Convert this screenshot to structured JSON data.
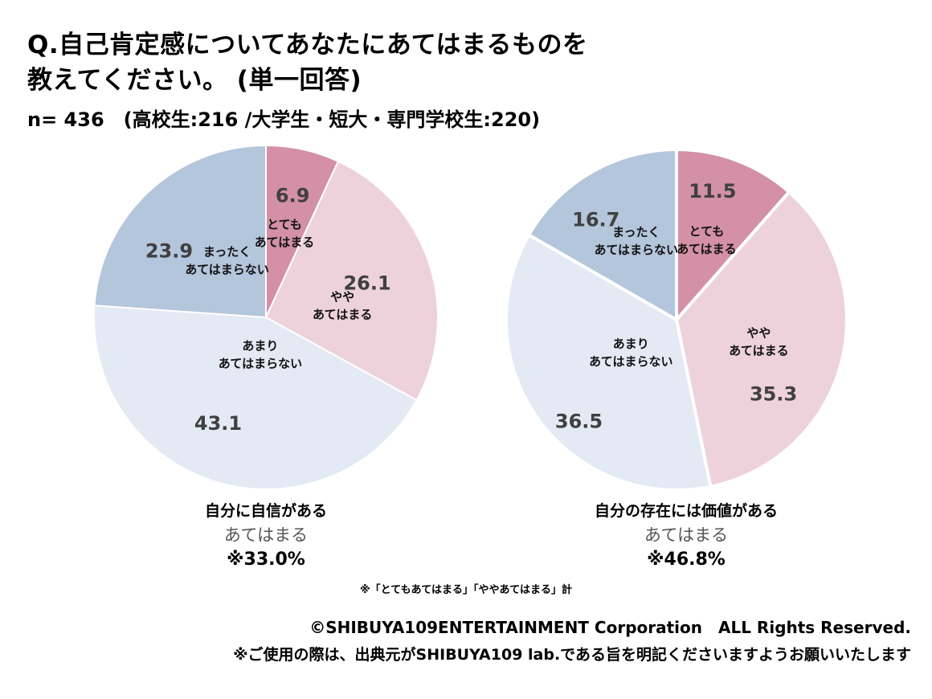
{
  "title_line1": "Q.自己肯定感についてあなたにあてはまるものを",
  "title_line2": "教えてください。 (単一回答)",
  "sample": "n= 436　(高校生:216 /大学生・短大・専門学校生:220)",
  "colors": {
    "totemo": "#d390a6",
    "yaya": "#edd2dc",
    "amari": "#e3eaf4",
    "mattaku": "#b4c6dc",
    "value_text": "#404040"
  },
  "chart_data": [
    {
      "type": "pie",
      "title": "自分に自信がある",
      "categories": [
        "とてもあてはまる",
        "ややあてはまる",
        "あまりあてはまらない",
        "まったくあてはまらない"
      ],
      "values": [
        6.9,
        26.1,
        43.1,
        23.9
      ],
      "value_labels": [
        "6.9",
        "26.1",
        "43.1",
        "23.9"
      ],
      "category_label_lines": [
        [
          "とても",
          "あてはまる"
        ],
        [
          "やや",
          "あてはまる"
        ],
        [
          "あまり",
          "あてはまらない"
        ],
        [
          "まったく",
          "あてはまらない"
        ]
      ],
      "summary_label": "あてはまる",
      "summary_value": "※33.0%",
      "start": "top",
      "direction": "clockwise"
    },
    {
      "type": "pie",
      "title": "自分の存在には価値がある",
      "categories": [
        "とてもあてはまる",
        "ややあてはまる",
        "あまりあてはまらない",
        "まったくあてはまらない"
      ],
      "values": [
        11.5,
        35.3,
        36.5,
        16.7
      ],
      "value_labels": [
        "11.5",
        "35.3",
        "36.5",
        "16.7"
      ],
      "category_label_lines": [
        [
          "とても",
          "あてはまる"
        ],
        [
          "やや",
          "あてはまる"
        ],
        [
          "あまり",
          "あてはまらない"
        ],
        [
          "まったく",
          "あてはまらない"
        ]
      ],
      "summary_label": "あてはまる",
      "summary_value": "※46.8%",
      "start": "top",
      "direction": "clockwise"
    }
  ],
  "footnote": "※「とてもあてはまる」「ややあてはまる」計",
  "copyright": "©SHIBUYA109ENTERTAINMENT Corporation　ALL Rights Reserved.",
  "usage_note": "※ご使用の際は、出典元がSHIBUYA109 lab.である旨を明記くださいますようお願いいたします"
}
